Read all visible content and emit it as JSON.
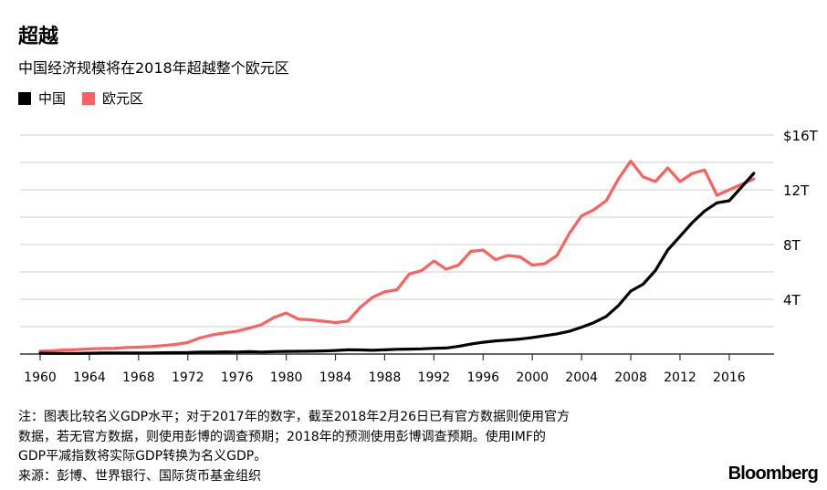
{
  "title": "超越",
  "subtitle": "中国经济规模将在2018年超越整个欧元区",
  "colors": {
    "china": "#000000",
    "eurozone": "#ff5f5f",
    "grid": "#dddddd"
  },
  "notes": [
    "注：图表比较名义GDP水平；对于2017年的数字，截至2018年2月26日已有官方数据则使用官方",
    "数据，若无官方数据，则使用彭博的调查预期；2018年的预测使用彭博调查预期。使用IMF的",
    "GDP平减指数将实际GDP转换为名义GDP。",
    "来源：彭博、世界银行、国际货币基金组织"
  ],
  "logo": "Bloomberg",
  "chart_data": {
    "type": "line",
    "title": "超越",
    "subtitle": "中国经济规模将在2018年超越整个欧元区",
    "legend_position": "top-left",
    "grid": true,
    "xlim": [
      1960,
      2018
    ],
    "ylim": [
      0,
      16
    ],
    "x_ticks": [
      "1960",
      "1964",
      "1968",
      "1972",
      "1976",
      "1980",
      "1984",
      "1988",
      "1992",
      "1996",
      "2000",
      "2004",
      "2008",
      "2012",
      "2016"
    ],
    "y_ticks": [
      {
        "value": 4,
        "label": "4T"
      },
      {
        "value": 8,
        "label": "8T"
      },
      {
        "value": 12,
        "label": "12T"
      },
      {
        "value": 16,
        "label": "$16T"
      }
    ],
    "x": [
      1960,
      1961,
      1962,
      1963,
      1964,
      1965,
      1966,
      1967,
      1968,
      1969,
      1970,
      1971,
      1972,
      1973,
      1974,
      1975,
      1976,
      1977,
      1978,
      1979,
      1980,
      1981,
      1982,
      1983,
      1984,
      1985,
      1986,
      1987,
      1988,
      1989,
      1990,
      1991,
      1992,
      1993,
      1994,
      1995,
      1996,
      1997,
      1998,
      1999,
      2000,
      2001,
      2002,
      2003,
      2004,
      2005,
      2006,
      2007,
      2008,
      2009,
      2010,
      2011,
      2012,
      2013,
      2014,
      2015,
      2016,
      2017,
      2018
    ],
    "series": [
      {
        "name": "中国",
        "color": "#000000",
        "values": [
          0.06,
          0.05,
          0.05,
          0.05,
          0.06,
          0.07,
          0.08,
          0.07,
          0.07,
          0.08,
          0.09,
          0.1,
          0.11,
          0.14,
          0.14,
          0.16,
          0.15,
          0.17,
          0.15,
          0.18,
          0.19,
          0.2,
          0.21,
          0.23,
          0.26,
          0.31,
          0.3,
          0.27,
          0.31,
          0.35,
          0.36,
          0.38,
          0.42,
          0.44,
          0.56,
          0.73,
          0.86,
          0.96,
          1.02,
          1.09,
          1.21,
          1.34,
          1.47,
          1.66,
          1.96,
          2.29,
          2.75,
          3.55,
          4.6,
          5.1,
          6.1,
          7.6,
          8.6,
          9.6,
          10.45,
          11.05,
          11.2,
          12.2,
          13.2
        ]
      },
      {
        "name": "欧元区",
        "color": "#ff5f5f",
        "values": [
          0.22,
          0.24,
          0.3,
          0.33,
          0.37,
          0.4,
          0.42,
          0.48,
          0.5,
          0.55,
          0.62,
          0.7,
          0.85,
          1.18,
          1.4,
          1.55,
          1.67,
          1.9,
          2.15,
          2.67,
          3.0,
          2.55,
          2.5,
          2.4,
          2.3,
          2.4,
          3.4,
          4.15,
          4.55,
          4.7,
          5.85,
          6.1,
          6.8,
          6.2,
          6.5,
          7.5,
          7.6,
          6.9,
          7.2,
          7.1,
          6.5,
          6.6,
          7.2,
          8.8,
          10.1,
          10.55,
          11.2,
          12.8,
          14.1,
          12.95,
          12.6,
          13.6,
          12.6,
          13.2,
          13.45,
          11.6,
          12.0,
          12.4,
          12.8
        ]
      }
    ]
  }
}
